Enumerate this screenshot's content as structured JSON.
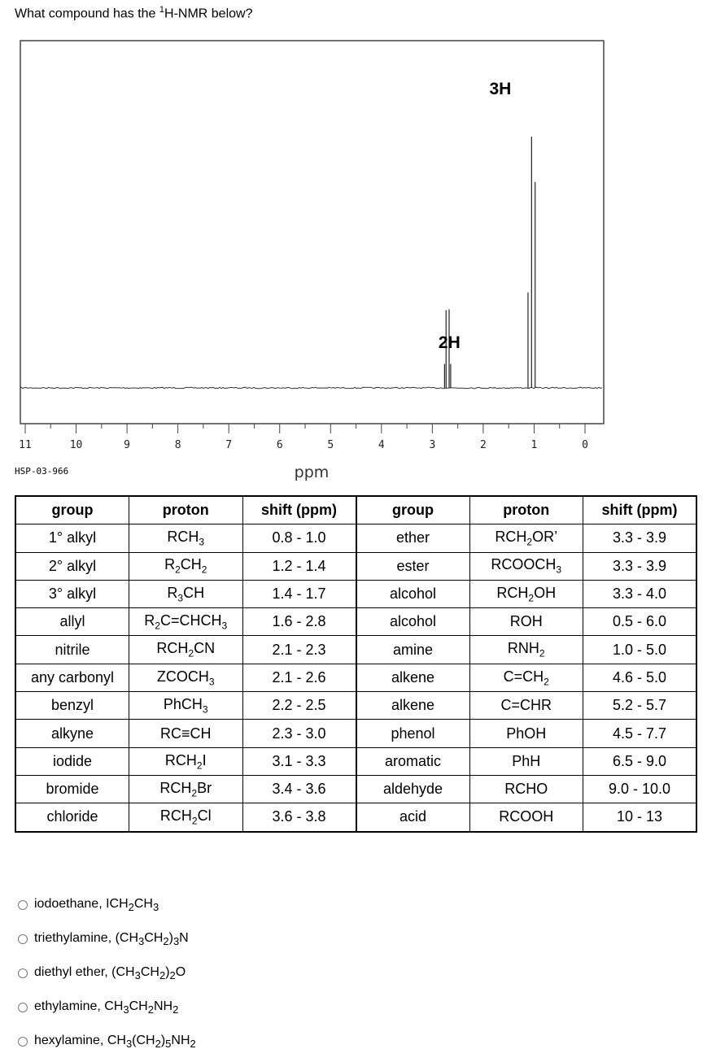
{
  "question": {
    "prefix": "What compound has the ",
    "sup": "1",
    "suffix": "H-NMR below?"
  },
  "chart_data": {
    "type": "line",
    "title": "",
    "xlabel": "ppm",
    "ylabel": "",
    "xlim": [
      11,
      0
    ],
    "x_ticks": [
      "11",
      "10",
      "9",
      "8",
      "7",
      "6",
      "5",
      "4",
      "3",
      "2",
      "1",
      "0"
    ],
    "code": "HSP-03-966",
    "peaks": [
      {
        "shift": 2.68,
        "relative_height": 0.34,
        "lines": [
          2.76,
          2.73,
          2.67,
          2.64
        ],
        "line_heights": [
          0.28,
          0.91,
          0.92,
          0.28
        ]
      },
      {
        "shift": 1.05,
        "relative_height": 1.0,
        "lines": [
          1.12,
          1.05,
          0.98
        ],
        "line_heights": [
          0.38,
          1.0,
          0.82
        ]
      }
    ],
    "integrations": [
      {
        "label": "2H",
        "ppm": 2.0
      },
      {
        "label": "3H",
        "ppm": 1.0
      }
    ]
  },
  "table": {
    "headers": [
      "group",
      "proton",
      "shift (ppm)",
      "group",
      "proton",
      "shift (ppm)"
    ],
    "rows": [
      [
        [
          "1° alkyl"
        ],
        [
          "RCH",
          [
            "3"
          ]
        ],
        [
          "0.8 - 1.0"
        ],
        [
          "ether"
        ],
        [
          "RCH",
          [
            "2"
          ],
          "OR’"
        ],
        [
          "3.3 - 3.9"
        ]
      ],
      [
        [
          "2° alkyl"
        ],
        [
          "R",
          [
            "2"
          ],
          "CH",
          [
            "2"
          ]
        ],
        [
          "1.2 - 1.4"
        ],
        [
          "ester"
        ],
        [
          "RCOOCH",
          [
            "3"
          ]
        ],
        [
          "3.3 - 3.9"
        ]
      ],
      [
        [
          "3° alkyl"
        ],
        [
          "R",
          [
            "3"
          ],
          "CH"
        ],
        [
          "1.4 - 1.7"
        ],
        [
          "alcohol"
        ],
        [
          "RCH",
          [
            "2"
          ],
          "OH"
        ],
        [
          "3.3 - 4.0"
        ]
      ],
      [
        [
          "allyl"
        ],
        [
          "R",
          [
            "2"
          ],
          "C=CHCH",
          [
            "3"
          ]
        ],
        [
          "1.6 - 2.8"
        ],
        [
          "alcohol"
        ],
        [
          "ROH"
        ],
        [
          "0.5 - 6.0"
        ]
      ],
      [
        [
          "nitrile"
        ],
        [
          "RCH",
          [
            "2"
          ],
          "CN"
        ],
        [
          "2.1 - 2.3"
        ],
        [
          "amine"
        ],
        [
          "RNH",
          [
            "2"
          ]
        ],
        [
          "1.0 - 5.0"
        ]
      ],
      [
        [
          "any carbonyl"
        ],
        [
          "ZCOCH",
          [
            "3"
          ]
        ],
        [
          "2.1 - 2.6"
        ],
        [
          "alkene"
        ],
        [
          "C=CH",
          [
            "2"
          ]
        ],
        [
          "4.6 - 5.0"
        ]
      ],
      [
        [
          "benzyl"
        ],
        [
          "PhCH",
          [
            "3"
          ]
        ],
        [
          "2.2 - 2.5"
        ],
        [
          "alkene"
        ],
        [
          "C=CHR"
        ],
        [
          "5.2 - 5.7"
        ]
      ],
      [
        [
          "alkyne"
        ],
        [
          "RC≡CH"
        ],
        [
          "2.3 - 3.0"
        ],
        [
          "phenol"
        ],
        [
          "PhOH"
        ],
        [
          "4.5 - 7.7"
        ]
      ],
      [
        [
          "iodide"
        ],
        [
          "RCH",
          [
            "2"
          ],
          "I"
        ],
        [
          "3.1 - 3.3"
        ],
        [
          "aromatic"
        ],
        [
          "PhH"
        ],
        [
          "6.5 - 9.0"
        ]
      ],
      [
        [
          "bromide"
        ],
        [
          "RCH",
          [
            "2"
          ],
          "Br"
        ],
        [
          "3.4 - 3.6"
        ],
        [
          "aldehyde"
        ],
        [
          "RCHO"
        ],
        [
          "9.0 - 10.0"
        ]
      ],
      [
        [
          "chloride"
        ],
        [
          "RCH",
          [
            "2"
          ],
          "Cl"
        ],
        [
          "3.6 - 3.8"
        ],
        [
          "acid"
        ],
        [
          "RCOOH"
        ],
        [
          "10 - 13"
        ]
      ]
    ]
  },
  "options": [
    [
      "iodoethane, ICH",
      [
        "2"
      ],
      "CH",
      [
        "3"
      ]
    ],
    [
      "triethylamine, (CH",
      [
        "3"
      ],
      "CH",
      [
        "2"
      ],
      ")",
      [
        "3"
      ],
      "N"
    ],
    [
      "diethyl ether, (CH",
      [
        "3"
      ],
      "CH",
      [
        "2"
      ],
      ")",
      [
        "2"
      ],
      "O"
    ],
    [
      "ethylamine, CH",
      [
        "3"
      ],
      "CH",
      [
        "2"
      ],
      "NH",
      [
        "2"
      ]
    ],
    [
      "hexylamine, CH",
      [
        "3"
      ],
      "(CH",
      [
        "2"
      ],
      ")",
      [
        "5"
      ],
      "NH",
      [
        "2"
      ]
    ]
  ]
}
